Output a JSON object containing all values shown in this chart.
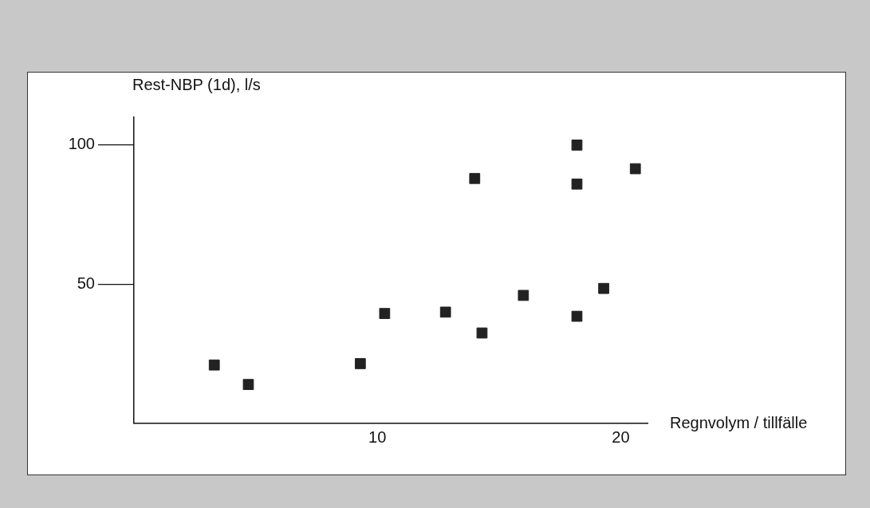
{
  "chart_data": {
    "type": "scatter",
    "xlabel": "Regnvolym / tillfälle",
    "ylabel": "Rest-NBP (1d), l/s",
    "x": [
      3.3,
      4.7,
      9.3,
      10.3,
      12.8,
      14.0,
      14.3,
      16.0,
      18.2,
      18.2,
      18.2,
      19.3,
      20.6
    ],
    "series": [
      {
        "color": "#222222",
        "values": [
          21,
          14,
          21.5,
          39.5,
          40,
          88,
          32.5,
          46,
          100,
          86,
          38.5,
          48.5,
          91.5
        ]
      }
    ],
    "xlim": [
      0,
      21.1
    ],
    "xticks": [
      10,
      20
    ],
    "ylim": [
      0,
      110
    ],
    "yticks": [
      50,
      100
    ],
    "grid": false,
    "legend": false,
    "marker": "square"
  }
}
